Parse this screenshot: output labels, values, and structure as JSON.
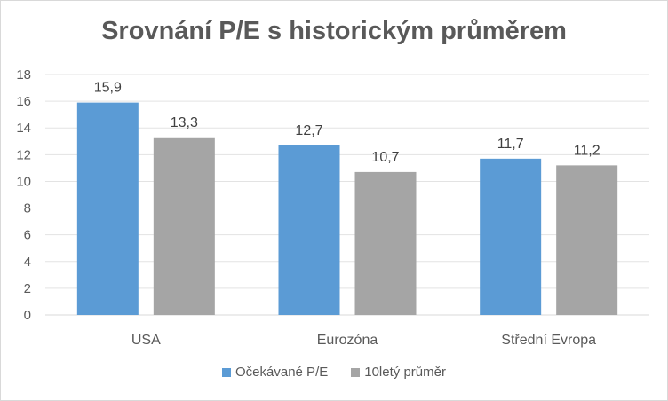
{
  "chart_data": {
    "type": "bar",
    "title": "Srovnání P/E s historickým průměrem",
    "categories": [
      "USA",
      "Eurozóna",
      "Střední Evropa"
    ],
    "series": [
      {
        "name": "Očekávané P/E",
        "values": [
          15.9,
          12.7,
          11.7
        ],
        "labels": [
          "15,9",
          "12,7",
          "11,7"
        ],
        "color": "#5b9bd5"
      },
      {
        "name": "10letý průměr",
        "values": [
          13.3,
          10.7,
          11.2
        ],
        "labels": [
          "13,3",
          "10,7",
          "11,2"
        ],
        "color": "#a5a5a5"
      }
    ],
    "ylim": [
      0,
      18
    ],
    "yticks": [
      "0",
      "2",
      "4",
      "6",
      "8",
      "10",
      "12",
      "14",
      "16",
      "18"
    ],
    "grid": true,
    "legend_position": "bottom"
  }
}
